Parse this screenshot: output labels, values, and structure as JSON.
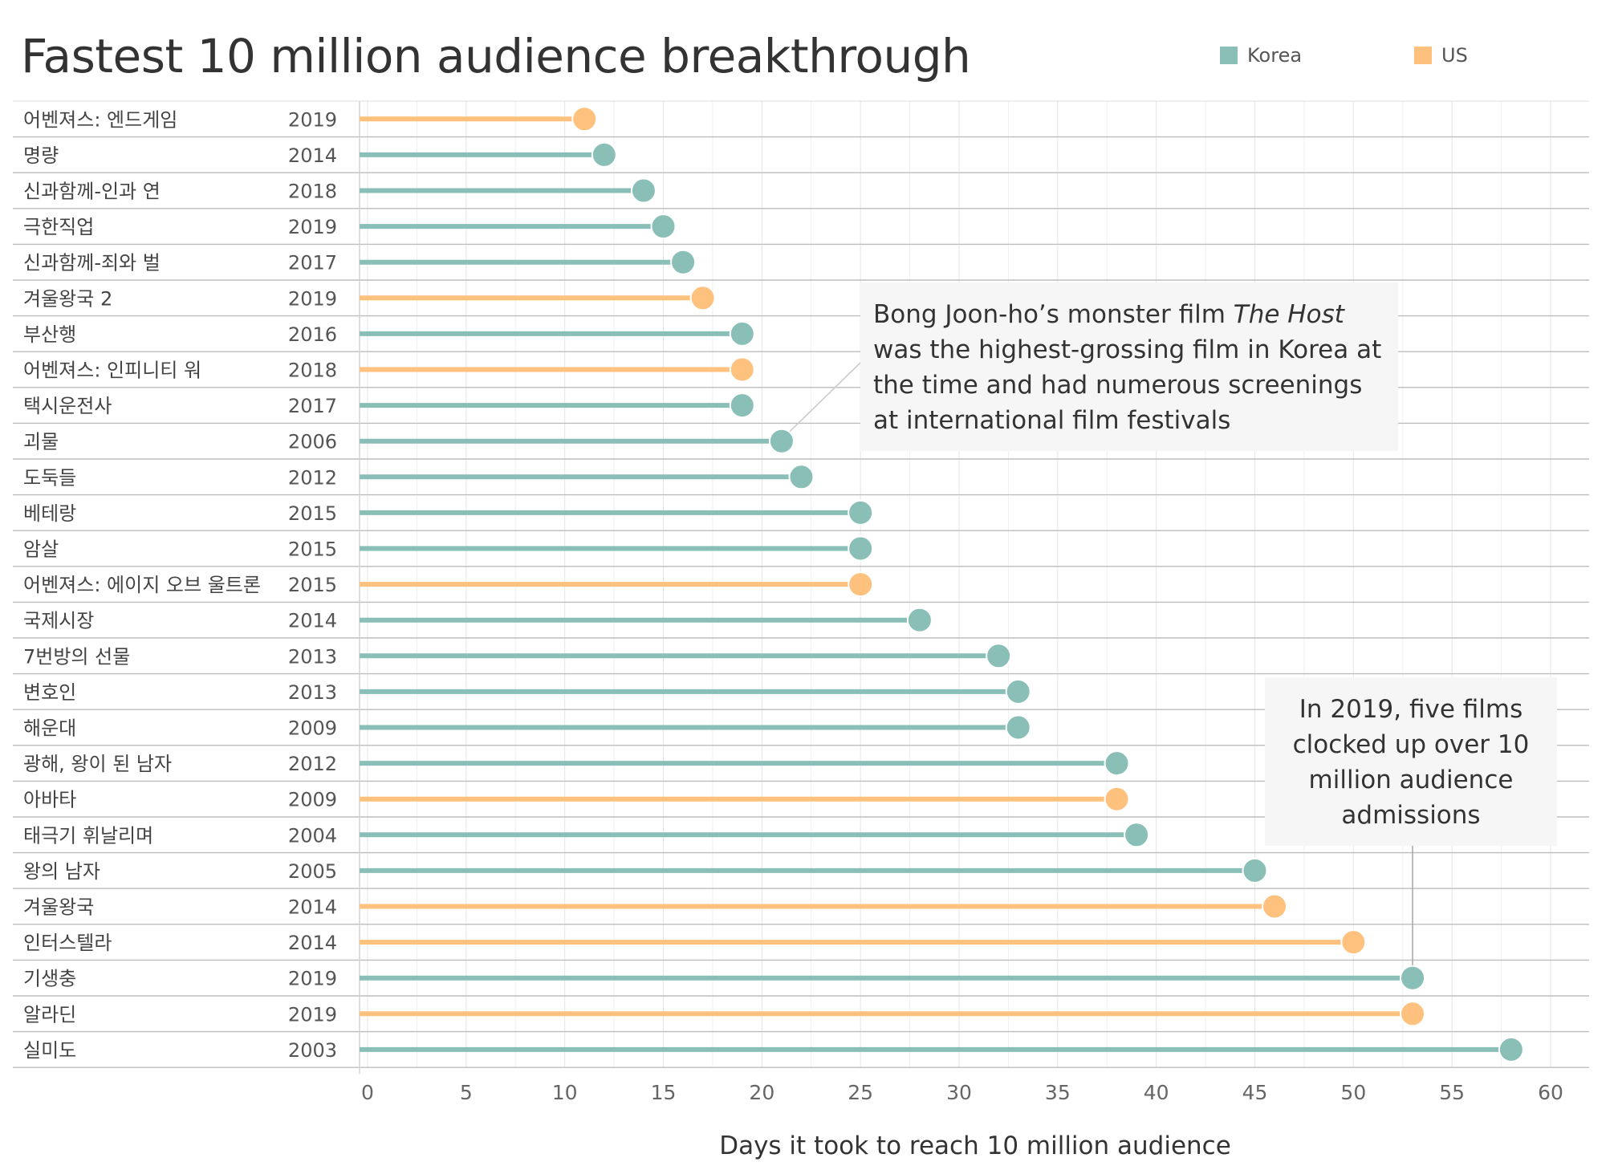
{
  "title": "Fastest 10 million audience breakthrough",
  "legend": [
    {
      "label": "Korea",
      "color": "#89BFB6"
    },
    {
      "label": "US",
      "color": "#FFC17E"
    }
  ],
  "annotations": {
    "host_before": "Bong Joon-ho’s monster film ",
    "host_italic": "The Host",
    "host_after": " was the highest-grossing film in Korea at the time and had numerous screenings at international film festivals",
    "y2019": "In 2019, five films clocked up over 10 million audience admissions"
  },
  "chart_data": {
    "type": "lollipop",
    "title": "Fastest 10 million audience breakthrough",
    "xlabel": "Days it took to reach 10 million audience",
    "xlim": [
      0,
      60
    ],
    "xticks": [
      0,
      5,
      10,
      15,
      20,
      25,
      30,
      35,
      40,
      45,
      50,
      55,
      60
    ],
    "grid": true,
    "legend_position": "top-right",
    "series_colors": {
      "Korea": "#89BFB6",
      "US": "#FFC17E"
    },
    "rows": [
      {
        "film": "어벤져스: 엔드게임",
        "year": "2019",
        "days": 11,
        "country": "US"
      },
      {
        "film": "명량",
        "year": "2014",
        "days": 12,
        "country": "Korea"
      },
      {
        "film": "신과함께-인과 연",
        "year": "2018",
        "days": 14,
        "country": "Korea"
      },
      {
        "film": "극한직업",
        "year": "2019",
        "days": 15,
        "country": "Korea"
      },
      {
        "film": "신과함께-죄와 벌",
        "year": "2017",
        "days": 16,
        "country": "Korea"
      },
      {
        "film": "겨울왕국 2",
        "year": "2019",
        "days": 17,
        "country": "US"
      },
      {
        "film": "부산행",
        "year": "2016",
        "days": 19,
        "country": "Korea"
      },
      {
        "film": "어벤져스: 인피니티 워",
        "year": "2018",
        "days": 19,
        "country": "US"
      },
      {
        "film": "택시운전사",
        "year": "2017",
        "days": 19,
        "country": "Korea"
      },
      {
        "film": "괴물",
        "year": "2006",
        "days": 21,
        "country": "Korea"
      },
      {
        "film": "도둑들",
        "year": "2012",
        "days": 22,
        "country": "Korea"
      },
      {
        "film": "베테랑",
        "year": "2015",
        "days": 25,
        "country": "Korea"
      },
      {
        "film": "암살",
        "year": "2015",
        "days": 25,
        "country": "Korea"
      },
      {
        "film": "어벤져스: 에이지 오브 울트론",
        "year": "2015",
        "days": 25,
        "country": "US"
      },
      {
        "film": "국제시장",
        "year": "2014",
        "days": 28,
        "country": "Korea"
      },
      {
        "film": "7번방의 선물",
        "year": "2013",
        "days": 32,
        "country": "Korea"
      },
      {
        "film": "변호인",
        "year": "2013",
        "days": 33,
        "country": "Korea"
      },
      {
        "film": "해운대",
        "year": "2009",
        "days": 33,
        "country": "Korea"
      },
      {
        "film": "광해, 왕이 된 남자",
        "year": "2012",
        "days": 38,
        "country": "Korea"
      },
      {
        "film": "아바타",
        "year": "2009",
        "days": 38,
        "country": "US"
      },
      {
        "film": "태극기 휘날리며",
        "year": "2004",
        "days": 39,
        "country": "Korea"
      },
      {
        "film": "왕의 남자",
        "year": "2005",
        "days": 45,
        "country": "Korea"
      },
      {
        "film": "겨울왕국",
        "year": "2014",
        "days": 46,
        "country": "US"
      },
      {
        "film": "인터스텔라",
        "year": "2014",
        "days": 50,
        "country": "US"
      },
      {
        "film": "기생충",
        "year": "2019",
        "days": 53,
        "country": "Korea"
      },
      {
        "film": "알라딘",
        "year": "2019",
        "days": 53,
        "country": "US"
      },
      {
        "film": "실미도",
        "year": "2003",
        "days": 58,
        "country": "Korea"
      }
    ]
  }
}
